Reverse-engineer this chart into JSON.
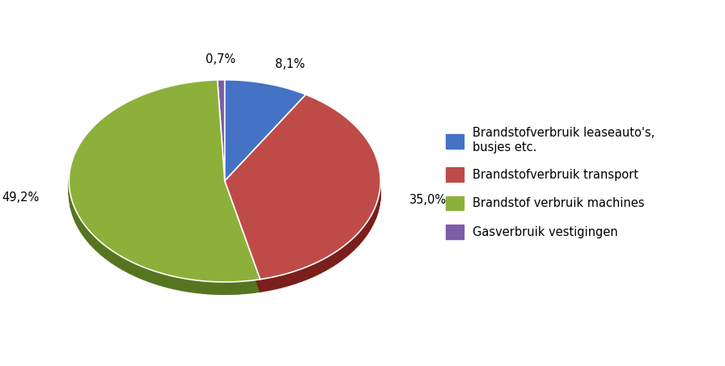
{
  "labels": [
    "Brandstofverbruik leaseauto's,\nbusjes etc.",
    "Brandstofverbruik transport",
    "Brandstof verbruik machines",
    "Gasverbruik vestigingen"
  ],
  "values": [
    8.1,
    35.0,
    49.2,
    0.7
  ],
  "colors": [
    "#4472C4",
    "#BE4B48",
    "#8DB03B",
    "#7B5EA7"
  ],
  "shadow_colors": [
    "#2A4E8A",
    "#7A1F1C",
    "#567520",
    "#4A3569"
  ],
  "pct_labels": [
    "8,1%",
    "35,0%",
    "49,2%",
    "0,7%"
  ],
  "legend_labels": [
    "Brandstofverbruik leaseauto's,\nbusjes etc.",
    "Brandstofverbruik transport",
    "Brandstof verbruik machines",
    "Gasverbruik vestigingen"
  ],
  "background_color": "#FFFFFF",
  "startangle": 90,
  "label_fontsize": 10.5,
  "legend_fontsize": 10.5
}
